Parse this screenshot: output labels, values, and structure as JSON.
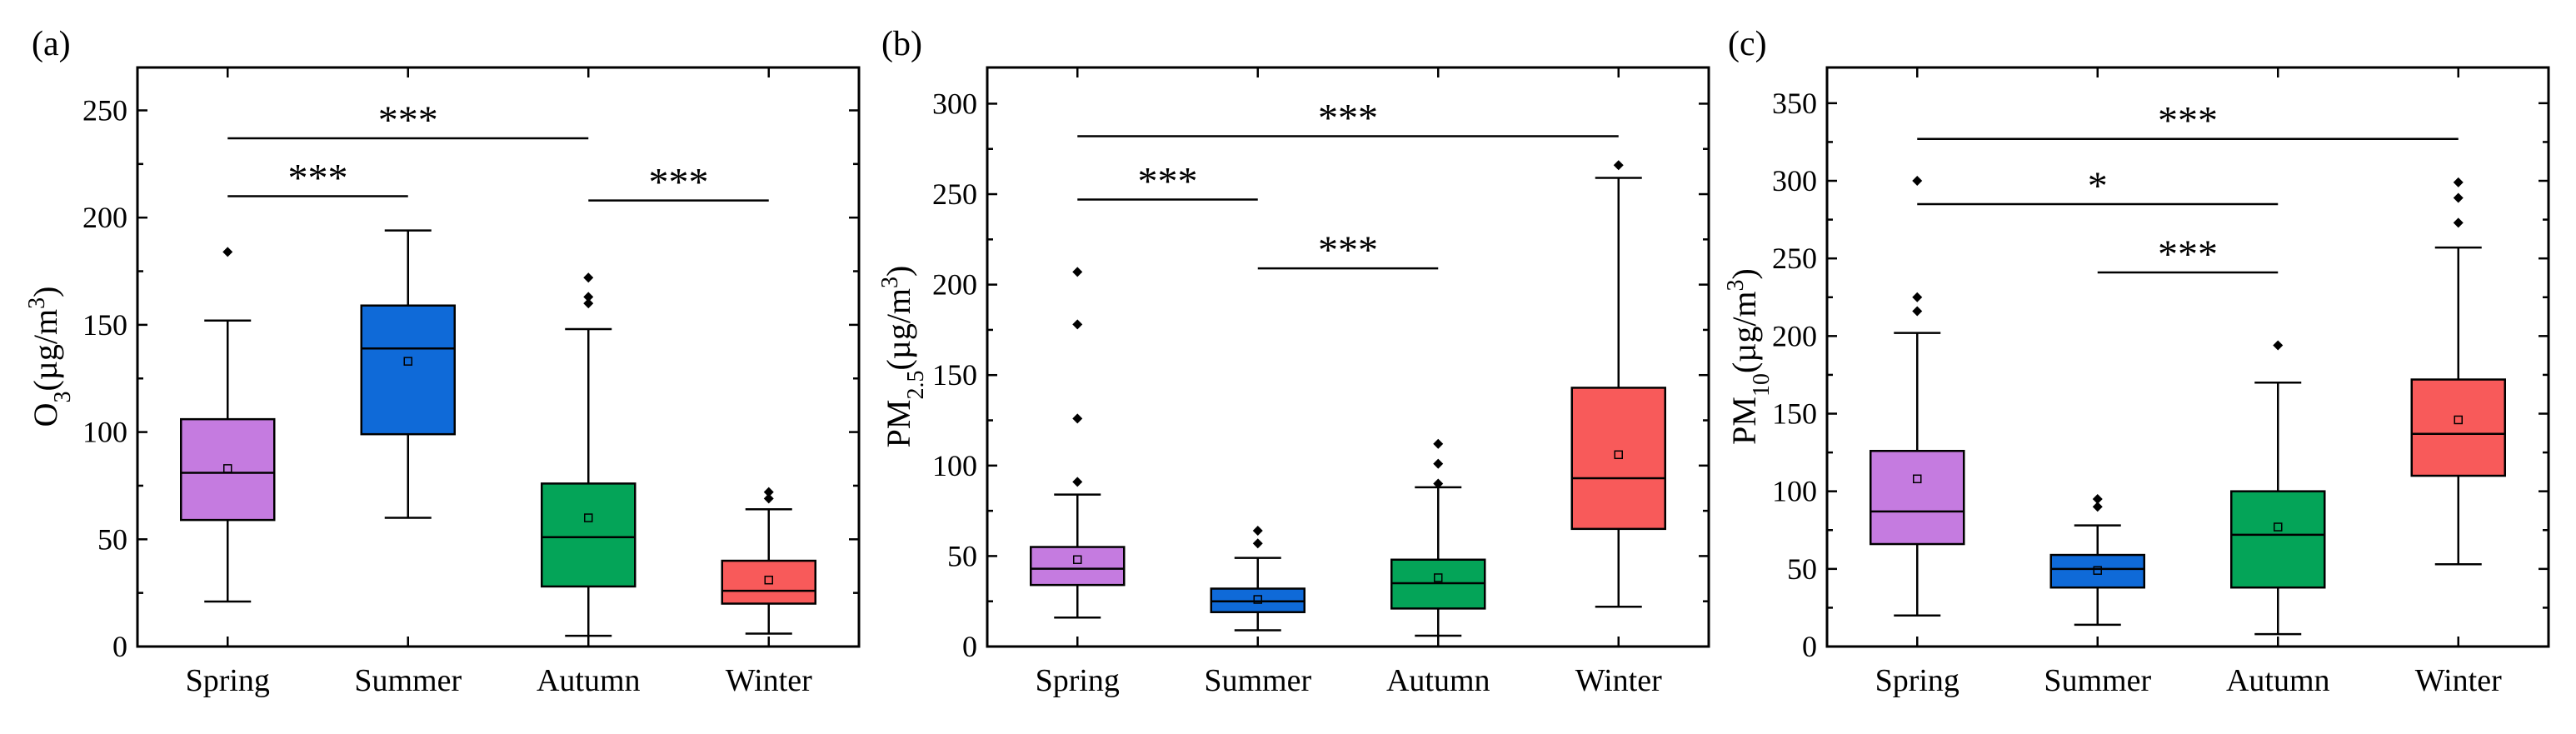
{
  "figure": {
    "categories": [
      "Spring",
      "Summer",
      "Autumn",
      "Winter"
    ],
    "colors": {
      "Spring": "#c57be0",
      "Summer": "#0f6ad8",
      "Autumn": "#04a458",
      "Winter": "#f85a5a",
      "axis": "#000000"
    }
  },
  "chart_data": [
    {
      "type": "box",
      "panel_label": "(a)",
      "ylabel": {
        "base": "O",
        "sub": "3",
        "unit_open": "(µg/m",
        "sup": "3",
        "unit_close": ")"
      },
      "ylim": [
        0,
        270
      ],
      "yticks": [
        0,
        50,
        100,
        150,
        200,
        250
      ],
      "series": [
        {
          "name": "Spring",
          "whisker_low": 21,
          "q1": 59,
          "median": 81,
          "q3": 106,
          "whisker_high": 152,
          "mean": 83,
          "outliers": [
            184
          ]
        },
        {
          "name": "Summer",
          "whisker_low": 60,
          "q1": 99,
          "median": 139,
          "q3": 159,
          "whisker_high": 194,
          "mean": 133,
          "outliers": []
        },
        {
          "name": "Autumn",
          "whisker_low": 5,
          "q1": 28,
          "median": 51,
          "q3": 76,
          "whisker_high": 148,
          "mean": 60,
          "outliers": [
            160,
            163,
            172
          ]
        },
        {
          "name": "Winter",
          "whisker_low": 6,
          "q1": 20,
          "median": 26,
          "q3": 40,
          "whisker_high": 64,
          "mean": 31,
          "outliers": [
            69,
            72
          ]
        }
      ],
      "significance": [
        {
          "from": "Spring",
          "to": "Summer",
          "y": 210,
          "label": "***"
        },
        {
          "from": "Spring",
          "to": "Autumn",
          "y": 237,
          "label": "***"
        },
        {
          "from": "Autumn",
          "to": "Winter",
          "y": 208,
          "label": "***"
        }
      ]
    },
    {
      "type": "box",
      "panel_label": "(b)",
      "ylabel": {
        "base": "PM",
        "sub": "2.5",
        "unit_open": "(µg/m",
        "sup": "3",
        "unit_close": ")"
      },
      "ylim": [
        0,
        320
      ],
      "yticks": [
        0,
        50,
        100,
        150,
        200,
        250,
        300
      ],
      "series": [
        {
          "name": "Spring",
          "whisker_low": 16,
          "q1": 34,
          "median": 43,
          "q3": 55,
          "whisker_high": 84,
          "mean": 48,
          "outliers": [
            91,
            126,
            178,
            207
          ]
        },
        {
          "name": "Summer",
          "whisker_low": 9,
          "q1": 19,
          "median": 25,
          "q3": 32,
          "whisker_high": 49,
          "mean": 26,
          "outliers": [
            57,
            64
          ]
        },
        {
          "name": "Autumn",
          "whisker_low": 6,
          "q1": 21,
          "median": 35,
          "q3": 48,
          "whisker_high": 88,
          "mean": 38,
          "outliers": [
            90,
            101,
            112
          ]
        },
        {
          "name": "Winter",
          "whisker_low": 22,
          "q1": 65,
          "median": 93,
          "q3": 143,
          "whisker_high": 259,
          "mean": 106,
          "outliers": [
            266
          ]
        }
      ],
      "significance": [
        {
          "from": "Spring",
          "to": "Winter",
          "y": 282,
          "label": "***"
        },
        {
          "from": "Spring",
          "to": "Summer",
          "y": 247,
          "label": "***"
        },
        {
          "from": "Summer",
          "to": "Autumn",
          "y": 209,
          "label": "***"
        }
      ]
    },
    {
      "type": "box",
      "panel_label": "(c)",
      "ylabel": {
        "base": "PM",
        "sub": "10",
        "unit_open": "(µg/m",
        "sup": "3",
        "unit_close": ")"
      },
      "ylim": [
        0,
        373
      ],
      "yticks": [
        0,
        50,
        100,
        150,
        200,
        250,
        300,
        350
      ],
      "series": [
        {
          "name": "Spring",
          "whisker_low": 20,
          "q1": 66,
          "median": 87,
          "q3": 126,
          "whisker_high": 202,
          "mean": 108,
          "outliers": [
            216,
            225,
            300
          ]
        },
        {
          "name": "Summer",
          "whisker_low": 14,
          "q1": 38,
          "median": 50,
          "q3": 59,
          "whisker_high": 78,
          "mean": 49,
          "outliers": [
            90,
            95
          ]
        },
        {
          "name": "Autumn",
          "whisker_low": 8,
          "q1": 38,
          "median": 72,
          "q3": 100,
          "whisker_high": 170,
          "mean": 77,
          "outliers": [
            194
          ]
        },
        {
          "name": "Winter",
          "whisker_low": 53,
          "q1": 110,
          "median": 137,
          "q3": 172,
          "whisker_high": 257,
          "mean": 146,
          "outliers": [
            273,
            289,
            299
          ]
        }
      ],
      "significance": [
        {
          "from": "Spring",
          "to": "Winter",
          "y": 327,
          "label": "***"
        },
        {
          "from": "Spring",
          "to": "Autumn",
          "y": 285,
          "label": "*"
        },
        {
          "from": "Summer",
          "to": "Autumn",
          "y": 241,
          "label": "***"
        }
      ]
    }
  ]
}
